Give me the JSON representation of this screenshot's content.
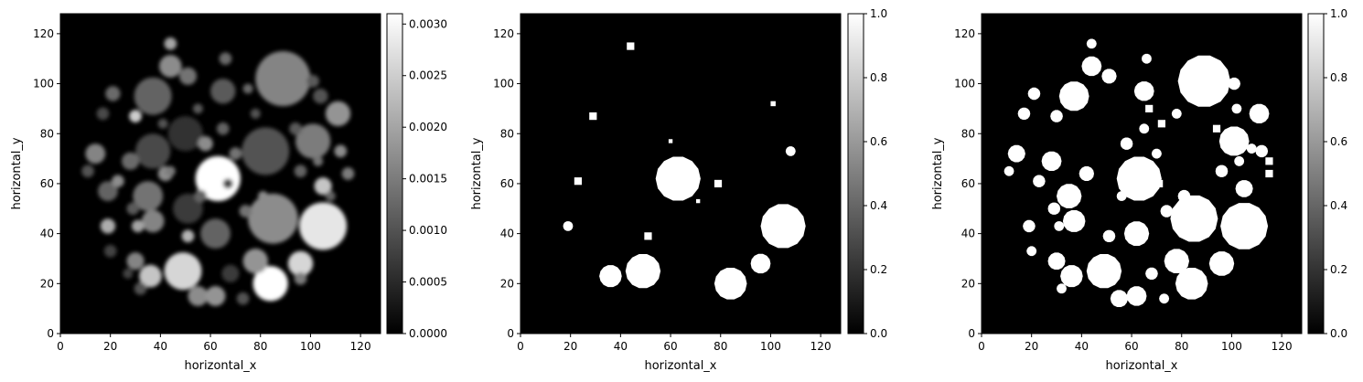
{
  "chart_data": [
    {
      "type": "heatmap",
      "title": "",
      "xlabel": "horizontal_x",
      "ylabel": "horizontal_y",
      "xlim": [
        0,
        128
      ],
      "ylim": [
        0,
        128
      ],
      "xticks": [
        "0",
        "20",
        "40",
        "60",
        "80",
        "100",
        "120"
      ],
      "yticks": [
        "0",
        "20",
        "40",
        "60",
        "80",
        "100",
        "120"
      ],
      "colormap": "gray",
      "colorbar": {
        "range": [
          0,
          0.0031
        ],
        "ticks": [
          "0.0000",
          "0.0005",
          "0.0010",
          "0.0015",
          "0.0020",
          "0.0025",
          "0.0030"
        ]
      },
      "blobs": [
        [
          89,
          102,
          11,
          0.0016
        ],
        [
          82,
          73,
          9.5,
          0.001
        ],
        [
          63,
          62,
          9,
          0.0031
        ],
        [
          85,
          46,
          10,
          0.0017
        ],
        [
          105,
          43,
          9.5,
          0.0028
        ],
        [
          49,
          25,
          7.5,
          0.0026
        ],
        [
          84,
          20,
          7,
          0.0031
        ],
        [
          37,
          95,
          7.5,
          0.0012
        ],
        [
          50,
          80,
          7,
          0.0006
        ],
        [
          37,
          73,
          7,
          0.0009
        ],
        [
          101,
          77,
          7,
          0.0015
        ],
        [
          35,
          55,
          6,
          0.0014
        ],
        [
          51,
          50,
          6,
          0.0007
        ],
        [
          62,
          40,
          6,
          0.0012
        ],
        [
          104,
          95,
          3,
          0.001
        ],
        [
          111,
          88,
          5,
          0.0018
        ],
        [
          96,
          28,
          5,
          0.0026
        ],
        [
          78,
          29,
          5,
          0.0018
        ],
        [
          65,
          97,
          5,
          0.0011
        ],
        [
          44,
          107,
          4.5,
          0.0017
        ],
        [
          36,
          23,
          4.5,
          0.0024
        ],
        [
          37,
          45,
          4.5,
          0.0016
        ],
        [
          55,
          15,
          4,
          0.0017
        ],
        [
          62,
          15,
          4,
          0.0018
        ],
        [
          14,
          72,
          4,
          0.0016
        ],
        [
          30,
          29,
          3.5,
          0.0016
        ],
        [
          51,
          103,
          3.5,
          0.0014
        ],
        [
          28,
          69,
          3.5,
          0.0013
        ],
        [
          19,
          57,
          4,
          0.0012
        ],
        [
          105,
          59,
          3.5,
          0.0024
        ],
        [
          42,
          64,
          3,
          0.0017
        ],
        [
          58,
          76,
          3,
          0.0017
        ],
        [
          21,
          96,
          3,
          0.0013
        ],
        [
          30,
          87,
          2.5,
          0.0025
        ],
        [
          70,
          72,
          2.5,
          0.0014
        ],
        [
          68,
          24,
          3.5,
          0.0007
        ],
        [
          19,
          43,
          3,
          0.0021
        ],
        [
          44,
          116,
          2.5,
          0.002
        ],
        [
          23,
          61,
          2.5,
          0.0017
        ],
        [
          51,
          39,
          2.5,
          0.0022
        ],
        [
          96,
          22,
          2.5,
          0.0015
        ],
        [
          73,
          14,
          2.5,
          0.001
        ],
        [
          112,
          73,
          2.5,
          0.0017
        ],
        [
          115,
          64,
          2.5,
          0.0015
        ],
        [
          96,
          65,
          2.5,
          0.0012
        ],
        [
          74,
          49,
          2.5,
          0.0014
        ],
        [
          66,
          110,
          2.5,
          0.0013
        ],
        [
          31,
          43,
          2.5,
          0.002
        ],
        [
          65,
          82,
          2.5,
          0.0012
        ],
        [
          94,
          82,
          2.5,
          0.0011
        ],
        [
          101,
          101,
          2.5,
          0.0011
        ],
        [
          11,
          65,
          2.5,
          0.001
        ],
        [
          17,
          88,
          2.5,
          0.0009
        ],
        [
          44,
          65,
          2,
          0.0015
        ],
        [
          20,
          33,
          2.5,
          0.0008
        ],
        [
          32,
          18,
          2.5,
          0.001
        ],
        [
          56,
          55,
          2.5,
          0.0012
        ],
        [
          75,
          98,
          2,
          0.0013
        ],
        [
          29,
          50,
          2.5,
          0.0011
        ],
        [
          78,
          88,
          2,
          0.001
        ],
        [
          103,
          69,
          2,
          0.0014
        ],
        [
          81,
          55,
          2,
          0.0017
        ],
        [
          27,
          24,
          2,
          0.0008
        ],
        [
          55,
          90,
          2,
          0.0011
        ],
        [
          41,
          84,
          2,
          0.001
        ],
        [
          67,
          60,
          2,
          0.0009
        ],
        [
          108,
          55,
          2,
          0.0012
        ]
      ]
    },
    {
      "type": "heatmap",
      "title": "",
      "xlabel": "horizontal_x",
      "ylabel": "horizontal_y",
      "xlim": [
        0,
        128
      ],
      "ylim": [
        0,
        128
      ],
      "xticks": [
        "0",
        "20",
        "40",
        "60",
        "80",
        "100",
        "120"
      ],
      "yticks": [
        "0",
        "20",
        "40",
        "60",
        "80",
        "100",
        "120"
      ],
      "colormap": "gray",
      "colorbar": {
        "range": [
          0,
          1
        ],
        "ticks": [
          "0.0",
          "0.2",
          "0.4",
          "0.6",
          "0.8",
          "1.0"
        ]
      },
      "blobs": [
        [
          63,
          62,
          9,
          1
        ],
        [
          105,
          43,
          9,
          1
        ],
        [
          49,
          25,
          7,
          1
        ],
        [
          84,
          20,
          6.5,
          1
        ],
        [
          96,
          28,
          4,
          1
        ],
        [
          36,
          23,
          4.5,
          1
        ],
        [
          44,
          115,
          1.5,
          1
        ],
        [
          29,
          87,
          1.5,
          1
        ],
        [
          23,
          61,
          1.5,
          1
        ],
        [
          19,
          43,
          2,
          1
        ],
        [
          51,
          39,
          1.5,
          1
        ],
        [
          79,
          60,
          1.5,
          1
        ],
        [
          108,
          73,
          2,
          1
        ],
        [
          101,
          92,
          1,
          1
        ],
        [
          60,
          77,
          0.8,
          1
        ],
        [
          71,
          53,
          0.8,
          1
        ]
      ]
    },
    {
      "type": "heatmap",
      "title": "",
      "xlabel": "horizontal_x",
      "ylabel": "horizontal_y",
      "xlim": [
        0,
        128
      ],
      "ylim": [
        0,
        128
      ],
      "xticks": [
        "0",
        "20",
        "40",
        "60",
        "80",
        "100",
        "120"
      ],
      "yticks": [
        "0",
        "20",
        "40",
        "60",
        "80",
        "100",
        "120"
      ],
      "colormap": "gray",
      "colorbar": {
        "range": [
          0,
          1
        ],
        "ticks": [
          "0.0",
          "0.2",
          "0.4",
          "0.6",
          "0.8",
          "1.0"
        ]
      },
      "blobs": [
        [
          89,
          101,
          10.5,
          1
        ],
        [
          63,
          62,
          9,
          1
        ],
        [
          85,
          46,
          9.5,
          1
        ],
        [
          105,
          43,
          9.5,
          1
        ],
        [
          49,
          25,
          7,
          1
        ],
        [
          84,
          20,
          6.5,
          1
        ],
        [
          101,
          77,
          6,
          1
        ],
        [
          37,
          95,
          6,
          1
        ],
        [
          35,
          55,
          5,
          1
        ],
        [
          62,
          40,
          5,
          1
        ],
        [
          111,
          88,
          4,
          1
        ],
        [
          96,
          28,
          5,
          1
        ],
        [
          78,
          29,
          5,
          1
        ],
        [
          65,
          97,
          4,
          1
        ],
        [
          44,
          107,
          4,
          1
        ],
        [
          36,
          23,
          4.5,
          1
        ],
        [
          37,
          45,
          4.5,
          1
        ],
        [
          55,
          14,
          3.5,
          1
        ],
        [
          62,
          15,
          4,
          1
        ],
        [
          14,
          72,
          3.5,
          1
        ],
        [
          30,
          29,
          3.5,
          1
        ],
        [
          51,
          103,
          3,
          1
        ],
        [
          28,
          69,
          4,
          1
        ],
        [
          105,
          58,
          3.5,
          1
        ],
        [
          42,
          64,
          3,
          1
        ],
        [
          58,
          76,
          2.5,
          1
        ],
        [
          21,
          96,
          2.5,
          1
        ],
        [
          30,
          87,
          2.5,
          1
        ],
        [
          70,
          72,
          2,
          1
        ],
        [
          68,
          24,
          2.5,
          1
        ],
        [
          19,
          43,
          2.5,
          1
        ],
        [
          44,
          116,
          2,
          1
        ],
        [
          23,
          61,
          2.5,
          1
        ],
        [
          51,
          39,
          2.5,
          1
        ],
        [
          73,
          14,
          2,
          1
        ],
        [
          112,
          73,
          2.5,
          1
        ],
        [
          115,
          64,
          1.5,
          1
        ],
        [
          96,
          65,
          2.5,
          1
        ],
        [
          74,
          49,
          2.5,
          1
        ],
        [
          66,
          110,
          2,
          1
        ],
        [
          31,
          43,
          2,
          1
        ],
        [
          65,
          82,
          2,
          1
        ],
        [
          94,
          82,
          1.5,
          1
        ],
        [
          101,
          100,
          2.5,
          1
        ],
        [
          11,
          65,
          2,
          1
        ],
        [
          17,
          88,
          2.5,
          1
        ],
        [
          20,
          33,
          2,
          1
        ],
        [
          32,
          18,
          2,
          1
        ],
        [
          56,
          55,
          2,
          1
        ],
        [
          29,
          50,
          2.5,
          1
        ],
        [
          78,
          88,
          2,
          1
        ],
        [
          103,
          69,
          2,
          1
        ],
        [
          81,
          55,
          2.5,
          1
        ],
        [
          71,
          60,
          1.5,
          1
        ],
        [
          72,
          84,
          1.5,
          1
        ],
        [
          102,
          90,
          2,
          1
        ],
        [
          108,
          74,
          2,
          1
        ],
        [
          115,
          69,
          1.5,
          1
        ],
        [
          67,
          90,
          1.5,
          1
        ]
      ]
    }
  ]
}
